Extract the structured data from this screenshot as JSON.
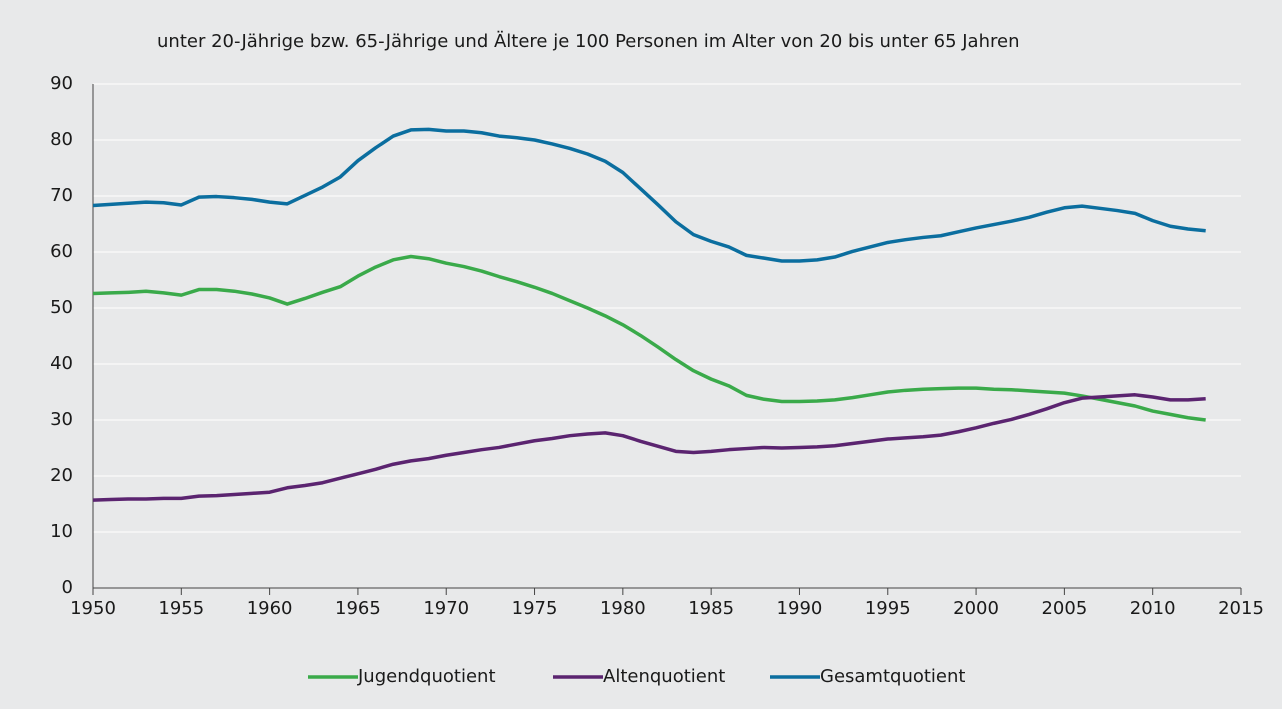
{
  "chart_data": {
    "type": "line",
    "title": "unter 20-Jährige bzw. 65-Jährige und Ältere je 100 Personen im Alter von 20 bis unter 65 Jahren",
    "x": [
      1950,
      1951,
      1952,
      1953,
      1954,
      1955,
      1956,
      1957,
      1958,
      1959,
      1960,
      1961,
      1962,
      1963,
      1964,
      1965,
      1966,
      1967,
      1968,
      1969,
      1970,
      1971,
      1972,
      1973,
      1974,
      1975,
      1976,
      1977,
      1978,
      1979,
      1980,
      1981,
      1982,
      1983,
      1984,
      1985,
      1986,
      1987,
      1988,
      1989,
      1990,
      1991,
      1992,
      1993,
      1994,
      1995,
      1996,
      1997,
      1998,
      1999,
      2000,
      2001,
      2002,
      2003,
      2004,
      2005,
      2006,
      2007,
      2008,
      2009,
      2010,
      2011,
      2012,
      2013
    ],
    "series": [
      {
        "name": "Jugendquotient",
        "color": "#3aaa4a",
        "values": [
          52.6,
          52.7,
          52.8,
          53.0,
          52.7,
          52.3,
          53.3,
          53.3,
          53.0,
          52.5,
          51.8,
          50.7,
          51.7,
          52.8,
          53.8,
          55.7,
          57.3,
          58.6,
          59.2,
          58.8,
          58.0,
          57.4,
          56.6,
          55.6,
          54.7,
          53.7,
          52.6,
          51.3,
          50.0,
          48.6,
          47.0,
          45.1,
          43.0,
          40.8,
          38.8,
          37.3,
          36.1,
          34.4,
          33.7,
          33.3,
          33.3,
          33.4,
          33.6,
          34.0,
          34.5,
          35.0,
          35.3,
          35.5,
          35.6,
          35.7,
          35.7,
          35.5,
          35.4,
          35.2,
          35.0,
          34.8,
          34.3,
          33.7,
          33.1,
          32.5,
          31.6,
          31.0,
          30.4,
          30.0
        ]
      },
      {
        "name": "Altenquotient",
        "color": "#5b2470",
        "values": [
          15.7,
          15.8,
          15.9,
          15.9,
          16.0,
          16.0,
          16.4,
          16.5,
          16.7,
          16.9,
          17.1,
          17.9,
          18.3,
          18.8,
          19.6,
          20.4,
          21.2,
          22.1,
          22.7,
          23.1,
          23.7,
          24.2,
          24.7,
          25.1,
          25.7,
          26.3,
          26.7,
          27.2,
          27.5,
          27.7,
          27.2,
          26.2,
          25.3,
          24.4,
          24.2,
          24.4,
          24.7,
          24.9,
          25.1,
          25.0,
          25.1,
          25.2,
          25.4,
          25.8,
          26.2,
          26.6,
          26.8,
          27.0,
          27.3,
          27.9,
          28.6,
          29.4,
          30.1,
          31.0,
          32.0,
          33.1,
          33.9,
          34.1,
          34.3,
          34.5,
          34.1,
          33.6,
          33.6,
          33.8
        ]
      },
      {
        "name": "Gesamtquotient",
        "color": "#0b6e9f",
        "values": [
          68.3,
          68.5,
          68.7,
          68.9,
          68.8,
          68.4,
          69.8,
          69.9,
          69.7,
          69.4,
          68.9,
          68.6,
          70.1,
          71.6,
          73.4,
          76.3,
          78.6,
          80.7,
          81.8,
          81.9,
          81.6,
          81.6,
          81.3,
          80.7,
          80.4,
          80.0,
          79.3,
          78.5,
          77.5,
          76.2,
          74.2,
          71.3,
          68.4,
          65.4,
          63.1,
          61.9,
          60.9,
          59.4,
          58.9,
          58.4,
          58.4,
          58.6,
          59.1,
          60.1,
          60.9,
          61.7,
          62.2,
          62.6,
          62.9,
          63.6,
          64.3,
          64.9,
          65.5,
          66.2,
          67.1,
          67.9,
          68.2,
          67.8,
          67.4,
          66.9,
          65.6,
          64.6,
          64.1,
          63.8
        ]
      }
    ],
    "xlim": [
      1950,
      2015
    ],
    "xticks": [
      1950,
      1955,
      1960,
      1965,
      1970,
      1975,
      1980,
      1985,
      1990,
      1995,
      2000,
      2005,
      2010,
      2015
    ],
    "ylim": [
      0,
      90
    ],
    "yticks": [
      0,
      10,
      20,
      30,
      40,
      50,
      60,
      70,
      80,
      90
    ],
    "grid": true,
    "legend": "bottom"
  }
}
